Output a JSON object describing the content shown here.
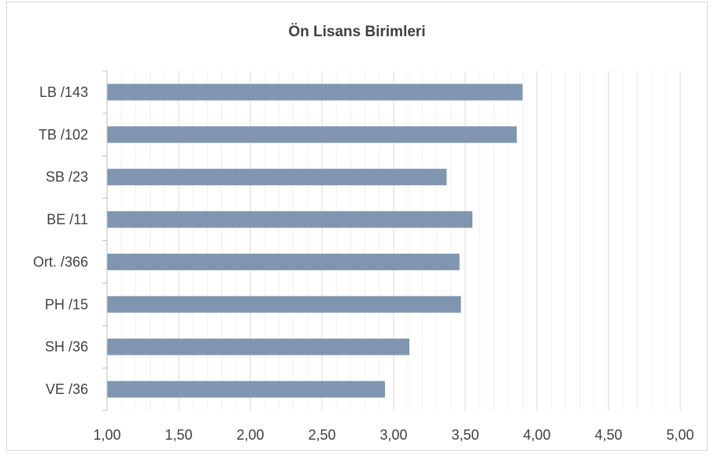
{
  "chart_data": {
    "type": "bar",
    "orientation": "horizontal",
    "title": "Ön Lisans Birimleri",
    "xlabel": "",
    "ylabel": "",
    "categories": [
      "LB /143",
      "TB /102",
      "SB /23",
      "BE /11",
      "Ort. /366",
      "PH /15",
      "SH /36",
      "VE /36"
    ],
    "values": [
      3.9,
      3.86,
      3.37,
      3.55,
      3.46,
      3.47,
      3.11,
      2.94
    ],
    "xlim": [
      1.0,
      5.0
    ],
    "ticks": [
      "1,00",
      "1,50",
      "2,00",
      "2,50",
      "3,00",
      "3,50",
      "4,00",
      "4,50",
      "5,00"
    ],
    "tick_values": [
      1.0,
      1.5,
      2.0,
      2.5,
      3.0,
      3.5,
      4.0,
      4.5,
      5.0
    ],
    "grid": true,
    "minor_grid": true,
    "legend": "none",
    "bar_color": "#8096b0",
    "grid_color": "#d9d9d9"
  }
}
